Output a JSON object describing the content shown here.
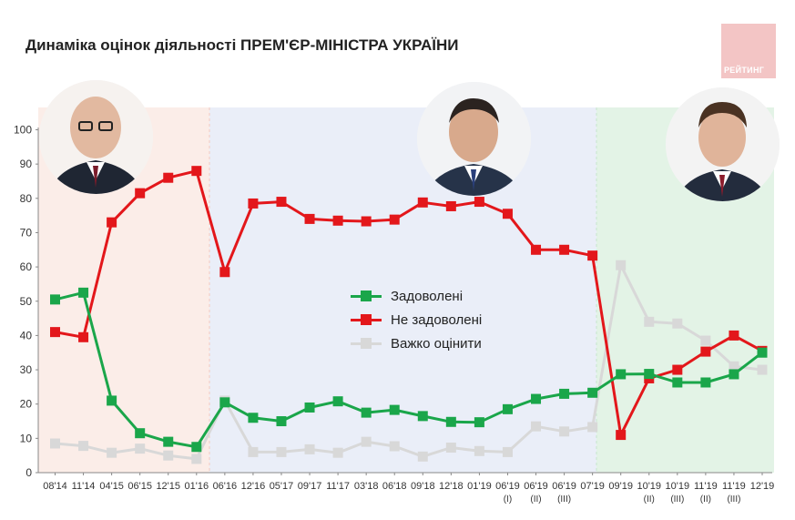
{
  "chart_data": {
    "type": "line",
    "title": "Динаміка оцінок діяльності ПРЕМ'ЄР-МІНІСТРА УКРАЇНИ",
    "categories": [
      "08'14",
      "11'14",
      "04'15",
      "06'15",
      "12'15",
      "01'16",
      "06'16",
      "12'16",
      "05'17",
      "09'17",
      "11'17",
      "03'18",
      "06'18",
      "09'18",
      "12'18",
      "01'19",
      "06'19\n(I)",
      "06'19\n(II)",
      "06'19\n(III)",
      "07'19",
      "09'19",
      "10'19\n(II)",
      "10'19\n(III)",
      "11'19\n(II)",
      "11'19\n(III)",
      "12'19"
    ],
    "ylim": [
      0,
      100
    ],
    "yticks": [
      0,
      10,
      20,
      30,
      40,
      50,
      60,
      70,
      80,
      90,
      100
    ],
    "series": [
      {
        "name": "Задоволені",
        "color": "#1aa64a",
        "values": [
          50.5,
          52.5,
          21,
          11.5,
          9,
          7.5,
          20.5,
          16,
          15,
          19,
          20.8,
          17.5,
          18.3,
          16.5,
          14.8,
          14.7,
          18.5,
          21.5,
          23,
          23.3,
          28.7,
          28.8,
          26.3,
          26.3,
          28.7,
          35
        ]
      },
      {
        "name": "Не задоволені",
        "color": "#e3171b",
        "values": [
          41,
          39.5,
          73,
          81.5,
          86,
          88,
          58.5,
          78.5,
          79,
          74,
          73.5,
          73.3,
          73.8,
          78.8,
          77.7,
          79,
          75.5,
          65,
          65,
          63.3,
          11,
          27.5,
          30,
          35.3,
          40,
          35.5
        ]
      },
      {
        "name": "Важко оцінити",
        "color": "#d8d8d8",
        "values": [
          8.5,
          7.8,
          5.8,
          7,
          5,
          4,
          21,
          6,
          6,
          6.8,
          5.8,
          9,
          7.7,
          4.7,
          7.3,
          6.3,
          6,
          13.5,
          12,
          13.3,
          60.5,
          44,
          43.5,
          38.5,
          31,
          30
        ]
      }
    ],
    "legend_position": "center",
    "grid": false,
    "periods": [
      {
        "color": "#fbede8"
      },
      {
        "color": "#eaeef8"
      },
      {
        "color": "#e3f3e6"
      }
    ],
    "logo_text": "РЕЙТИНГ"
  }
}
